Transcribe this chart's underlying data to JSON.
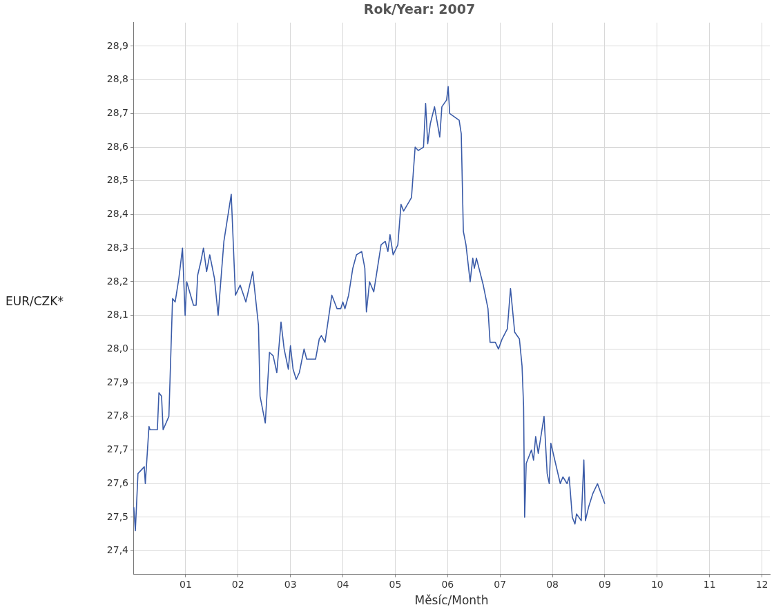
{
  "chart_data": {
    "type": "line",
    "title": "Rok/Year: 2007",
    "xlabel": "Měsíc/Month",
    "ylabel": "EUR/CZK*",
    "xlim": [
      0,
      12.15
    ],
    "xticks": [
      {
        "value": 1,
        "label": "01"
      },
      {
        "value": 2,
        "label": "02"
      },
      {
        "value": 3,
        "label": "03"
      },
      {
        "value": 4,
        "label": "04"
      },
      {
        "value": 5,
        "label": "05"
      },
      {
        "value": 6,
        "label": "06"
      },
      {
        "value": 7,
        "label": "07"
      },
      {
        "value": 8,
        "label": "08"
      },
      {
        "value": 9,
        "label": "09"
      },
      {
        "value": 10,
        "label": "10"
      },
      {
        "value": 11,
        "label": "11"
      },
      {
        "value": 12,
        "label": "12"
      }
    ],
    "ylim": [
      27.33,
      28.97
    ],
    "yticks": [
      {
        "value": 27.4,
        "label": "27,4"
      },
      {
        "value": 27.5,
        "label": "27,5"
      },
      {
        "value": 27.6,
        "label": "27,6"
      },
      {
        "value": 27.7,
        "label": "27,7"
      },
      {
        "value": 27.8,
        "label": "27,8"
      },
      {
        "value": 27.9,
        "label": "27,9"
      },
      {
        "value": 28.0,
        "label": "28,0"
      },
      {
        "value": 28.1,
        "label": "28,1"
      },
      {
        "value": 28.2,
        "label": "28,2"
      },
      {
        "value": 28.3,
        "label": "28,3"
      },
      {
        "value": 28.4,
        "label": "28,4"
      },
      {
        "value": 28.5,
        "label": "28,5"
      },
      {
        "value": 28.6,
        "label": "28,6"
      },
      {
        "value": 28.7,
        "label": "28,7"
      },
      {
        "value": 28.8,
        "label": "28,8"
      },
      {
        "value": 28.9,
        "label": "28,9"
      }
    ],
    "grid": true,
    "marker": "none",
    "line_style": "solid",
    "legend": false,
    "series": [
      {
        "color": "#3a5ba8",
        "x": [
          0.01,
          0.04,
          0.09,
          0.21,
          0.23,
          0.3,
          0.32,
          0.46,
          0.49,
          0.54,
          0.57,
          0.68,
          0.75,
          0.8,
          0.87,
          0.94,
          0.99,
          1.02,
          1.15,
          1.2,
          1.23,
          1.29,
          1.34,
          1.4,
          1.46,
          1.55,
          1.62,
          1.73,
          1.87,
          1.95,
          2.04,
          2.15,
          2.28,
          2.39,
          2.42,
          2.52,
          2.6,
          2.67,
          2.74,
          2.82,
          2.88,
          2.96,
          3.0,
          3.05,
          3.11,
          3.17,
          3.26,
          3.31,
          3.48,
          3.55,
          3.59,
          3.66,
          3.79,
          3.89,
          3.96,
          4.0,
          4.04,
          4.11,
          4.19,
          4.26,
          4.36,
          4.42,
          4.45,
          4.51,
          4.59,
          4.67,
          4.73,
          4.81,
          4.86,
          4.9,
          4.96,
          5.05,
          5.11,
          5.16,
          5.31,
          5.38,
          5.44,
          5.54,
          5.58,
          5.62,
          5.67,
          5.75,
          5.85,
          5.89,
          5.98,
          6.01,
          6.04,
          6.22,
          6.26,
          6.3,
          6.35,
          6.43,
          6.48,
          6.51,
          6.55,
          6.68,
          6.77,
          6.81,
          6.91,
          6.97,
          7.04,
          7.14,
          7.2,
          7.28,
          7.37,
          7.42,
          7.45,
          7.47,
          7.5,
          7.6,
          7.64,
          7.68,
          7.73,
          7.84,
          7.9,
          7.94,
          7.97,
          8.15,
          8.2,
          8.28,
          8.32,
          8.38,
          8.43,
          8.46,
          8.55,
          8.6,
          8.63,
          8.69,
          8.77,
          8.86,
          9.0
        ],
        "values": [
          27.53,
          27.46,
          27.63,
          27.65,
          27.6,
          27.77,
          27.76,
          27.76,
          27.87,
          27.86,
          27.76,
          27.8,
          28.15,
          28.14,
          28.21,
          28.3,
          28.1,
          28.2,
          28.13,
          28.13,
          28.22,
          28.26,
          28.3,
          28.23,
          28.28,
          28.21,
          28.1,
          28.32,
          28.46,
          28.16,
          28.19,
          28.14,
          28.23,
          28.07,
          27.86,
          27.78,
          27.99,
          27.98,
          27.93,
          28.08,
          28.0,
          27.94,
          28.01,
          27.94,
          27.91,
          27.93,
          28.0,
          27.97,
          27.97,
          28.03,
          28.04,
          28.02,
          28.16,
          28.12,
          28.12,
          28.14,
          28.12,
          28.16,
          28.24,
          28.28,
          28.29,
          28.24,
          28.11,
          28.2,
          28.17,
          28.25,
          28.31,
          28.32,
          28.29,
          28.34,
          28.28,
          28.31,
          28.43,
          28.41,
          28.45,
          28.6,
          28.59,
          28.6,
          28.73,
          28.61,
          28.67,
          28.72,
          28.63,
          28.72,
          28.74,
          28.78,
          28.7,
          28.68,
          28.64,
          28.35,
          28.31,
          28.2,
          28.27,
          28.24,
          28.27,
          28.19,
          28.12,
          28.02,
          28.02,
          28.0,
          28.03,
          28.06,
          28.18,
          28.05,
          28.03,
          27.95,
          27.83,
          27.5,
          27.66,
          27.7,
          27.67,
          27.74,
          27.69,
          27.8,
          27.63,
          27.6,
          27.72,
          27.6,
          27.62,
          27.6,
          27.62,
          27.5,
          27.48,
          27.51,
          27.49,
          27.67,
          27.49,
          27.53,
          27.57,
          27.6,
          27.54
        ]
      }
    ]
  }
}
